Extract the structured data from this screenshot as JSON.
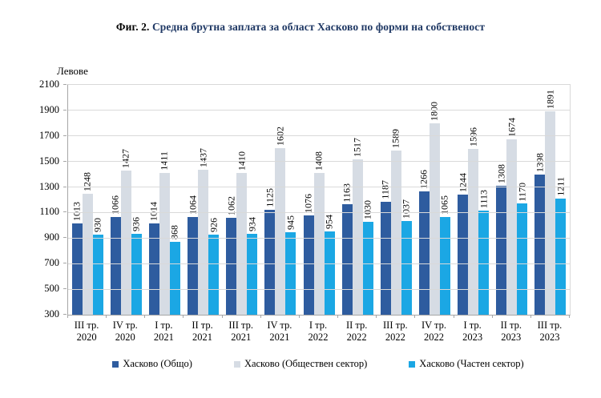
{
  "title": {
    "prefix": "Фиг. 2.",
    "rest": " Средна брутна заплата за област Хасково по форми на собственост"
  },
  "chart_data": {
    "type": "bar",
    "title": "Фиг. 2. Средна брутна заплата за област Хасково по форми на собственост",
    "ylabel": "Левове",
    "xlabel": "",
    "ylim": [
      300,
      2100
    ],
    "ytick_step": 200,
    "grid": true,
    "legend_position": "bottom",
    "categories": [
      {
        "quarter": "III тр.",
        "year": "2020"
      },
      {
        "quarter": "IV тр.",
        "year": "2020"
      },
      {
        "quarter": "I тр.",
        "year": "2021"
      },
      {
        "quarter": "II тр.",
        "year": "2021"
      },
      {
        "quarter": "III тр.",
        "year": "2021"
      },
      {
        "quarter": "IV тр.",
        "year": "2021"
      },
      {
        "quarter": "I тр.",
        "year": "2022"
      },
      {
        "quarter": "II тр.",
        "year": "2022"
      },
      {
        "quarter": "III тр.",
        "year": "2022"
      },
      {
        "quarter": "IV тр.",
        "year": "2022"
      },
      {
        "quarter": "I тр.",
        "year": "2023"
      },
      {
        "quarter": "II тр.",
        "year": "2023"
      },
      {
        "quarter": "III тр.",
        "year": "2023"
      }
    ],
    "series": [
      {
        "name": "Хасково (Общо)",
        "color": "#2E5C9F",
        "values": [
          1013,
          1066,
          1014,
          1064,
          1062,
          1125,
          1076,
          1163,
          1187,
          1266,
          1244,
          1308,
          1398
        ]
      },
      {
        "name": "Хасково (Обществен сектор)",
        "color": "#D6DCE4",
        "values": [
          1248,
          1427,
          1411,
          1437,
          1410,
          1602,
          1408,
          1517,
          1589,
          1800,
          1596,
          1674,
          1891
        ]
      },
      {
        "name": "Хасково (Частен сектор)",
        "color": "#1BA7E4",
        "values": [
          930,
          936,
          868,
          926,
          934,
          945,
          954,
          1030,
          1037,
          1065,
          1113,
          1170,
          1211
        ]
      }
    ],
    "colors": {
      "title_text": "#1F3864",
      "gridline": "#D9D9D9",
      "axis_line": "#A6A6A6",
      "label_text": "#000000"
    }
  }
}
